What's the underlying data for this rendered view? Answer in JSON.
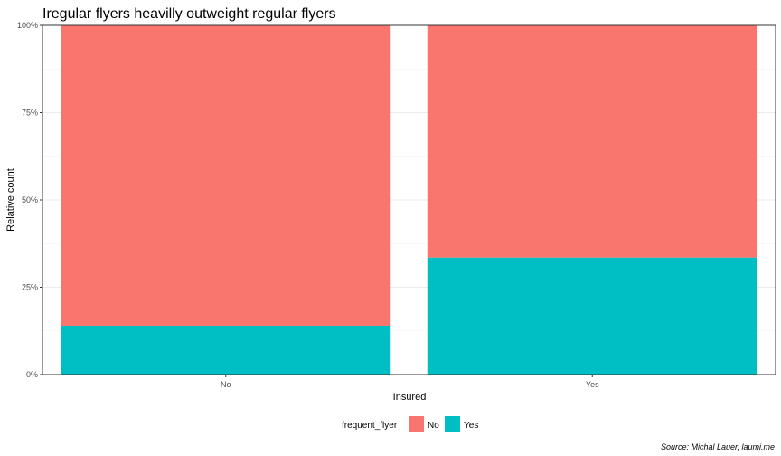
{
  "chart_data": {
    "type": "bar",
    "stacked": true,
    "title": "Iregular flyers heavilly outweight regular flyers",
    "xlabel": "Insured",
    "ylabel": "Relative count",
    "categories": [
      "No",
      "Yes"
    ],
    "series": [
      {
        "name": "No",
        "color": "#F8766D",
        "values": [
          0.86,
          0.665
        ]
      },
      {
        "name": "Yes",
        "color": "#00BFC4",
        "values": [
          0.14,
          0.335
        ]
      }
    ],
    "ylim": [
      0,
      1
    ],
    "yticks": [
      0,
      0.25,
      0.5,
      0.75,
      1
    ],
    "ytick_labels": [
      "0%",
      "25%",
      "50%",
      "75%",
      "100%"
    ],
    "grid": true,
    "legend": {
      "title": "frequent_flyer",
      "position": "bottom"
    },
    "caption": "Source: Michal Lauer, laumi.me"
  }
}
